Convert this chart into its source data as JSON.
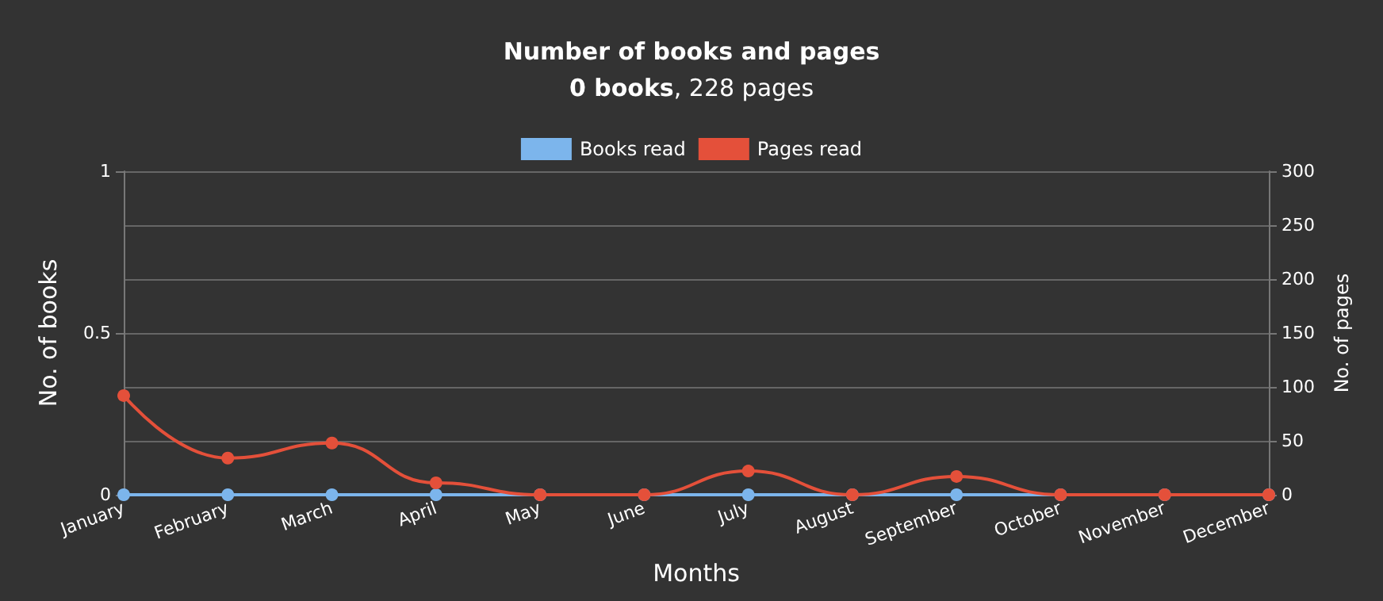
{
  "chart_data": {
    "type": "line",
    "title": "Number of books and pages",
    "subtitle": "0 books, 228 pages",
    "xlabel": "Months",
    "ylabel": "No. of books",
    "y2label": "No. of pages",
    "categories": [
      "January",
      "February",
      "March",
      "April",
      "May",
      "June",
      "July",
      "August",
      "September",
      "October",
      "November",
      "December"
    ],
    "series": [
      {
        "name": "Books read",
        "color": "#7cb5ec",
        "values": [
          0,
          0,
          0,
          0,
          0,
          0,
          0,
          0,
          0,
          0,
          0,
          0
        ]
      },
      {
        "name": "Pages read",
        "color": "#e4503a",
        "axis": "y2",
        "values": [
          92,
          34,
          48,
          11,
          0,
          0,
          22,
          0,
          17,
          0,
          0,
          0
        ]
      }
    ],
    "ylim": [
      0,
      1
    ],
    "yticks": [
      0,
      0.5,
      1
    ],
    "y2lim": [
      0,
      300
    ],
    "y2ticks": [
      0,
      50,
      100,
      150,
      200,
      250,
      300
    ],
    "grid": "y",
    "legend": "top",
    "marker": "circle",
    "line_style": "solid"
  }
}
